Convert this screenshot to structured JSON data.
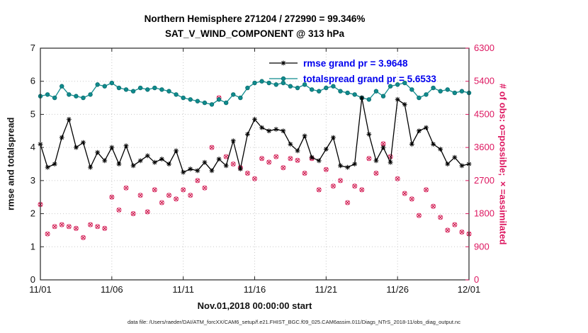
{
  "chart_data": {
    "type": "line",
    "title_line1": "Northern Hemisphere 271204 / 272990 = 99.346%",
    "title_line2": "SAT_V_WIND_COMPONENT @ 313 hPa",
    "xlabel": "Nov.01,2018 00:00:00 start",
    "ylabel_left": "rmse and totalspread",
    "ylabel_right": "# of obs: o=possible; ×=assimilated",
    "caption": "data file: /Users/raeder/DAI/ATM_forcXX/CAM6_setup/f.e21.FHIST_BGC.f09_025.CAM6assim.011/Diags_NTrS_2018-11/obs_diag_output.nc",
    "possible_count": 272990,
    "assimilated_count": 271204,
    "assimilated_pct": 99.346,
    "x_tick_labels": [
      "11/01",
      "11/06",
      "11/11",
      "11/16",
      "11/21",
      "11/26",
      "12/01"
    ],
    "x_tick_days": [
      0,
      5,
      10,
      15,
      20,
      25,
      30
    ],
    "x_range_days": [
      0,
      30
    ],
    "time_step_days": 0.5,
    "ylim_left": [
      0,
      7
    ],
    "yticks_left": [
      0,
      1,
      2,
      3,
      4,
      5,
      6,
      7
    ],
    "ylim_right": [
      0,
      6300
    ],
    "yticks_right": [
      0,
      900,
      1800,
      2700,
      3600,
      4500,
      5400,
      6300
    ],
    "grid": true,
    "legend": [
      {
        "label": "rmse grand pr = 3.9648",
        "series": "rmse"
      },
      {
        "label": "totalspread grand pr = 5.6533",
        "series": "totalspread"
      }
    ],
    "colors": {
      "rmse": "#000000",
      "totalspread": "#0f8b8d",
      "totalspread_edge": "#0a6b6d",
      "possible_obs": "#e0457b",
      "assimilated_obs": "#cc1144",
      "right_axis": "#dd1760",
      "legend_text": "#0000ee",
      "grid": "#c9c9c9",
      "box": "#262626"
    },
    "series": [
      {
        "name": "rmse",
        "axis": "left",
        "marker": "asterisk",
        "grand_mean": 3.9648,
        "values": [
          4.1,
          3.4,
          3.5,
          4.3,
          4.85,
          4.0,
          4.15,
          3.4,
          3.85,
          3.6,
          4.0,
          3.5,
          4.05,
          3.45,
          3.6,
          3.75,
          3.55,
          3.65,
          3.5,
          3.9,
          3.25,
          3.35,
          3.3,
          3.55,
          3.3,
          3.65,
          3.45,
          4.2,
          3.35,
          4.4,
          4.85,
          4.6,
          4.5,
          4.55,
          4.5,
          4.1,
          3.9,
          4.35,
          3.7,
          3.6,
          3.95,
          4.3,
          3.45,
          3.4,
          3.5,
          5.5,
          4.4,
          3.6,
          4.0,
          3.55,
          5.45,
          5.3,
          4.1,
          4.5,
          4.6,
          4.1,
          3.95,
          3.5,
          3.7,
          3.45,
          3.5
        ]
      },
      {
        "name": "totalspread",
        "axis": "left",
        "marker": "filled-circle",
        "grand_mean": 5.6533,
        "values": [
          5.55,
          5.6,
          5.5,
          5.85,
          5.6,
          5.55,
          5.5,
          5.6,
          5.9,
          5.85,
          5.95,
          5.8,
          5.75,
          5.7,
          5.8,
          5.75,
          5.8,
          5.75,
          5.7,
          5.6,
          5.5,
          5.45,
          5.4,
          5.35,
          5.3,
          5.45,
          5.35,
          5.6,
          5.5,
          5.8,
          5.95,
          6.0,
          5.95,
          5.9,
          5.95,
          5.85,
          5.8,
          5.9,
          5.75,
          5.7,
          5.8,
          5.85,
          5.7,
          5.65,
          5.6,
          5.5,
          5.45,
          5.7,
          5.55,
          5.85,
          5.9,
          5.95,
          5.75,
          5.5,
          5.6,
          5.8,
          5.7,
          5.75,
          5.65,
          5.7,
          5.65
        ]
      },
      {
        "name": "possible_obs",
        "axis": "right",
        "marker": "open-circle",
        "values": [
          2050,
          1250,
          1450,
          1500,
          1450,
          1400,
          1150,
          1500,
          1450,
          1400,
          2250,
          1900,
          2500,
          1800,
          2300,
          1850,
          2450,
          2100,
          2300,
          2200,
          2450,
          2300,
          2700,
          2500,
          3600,
          4950,
          3350,
          3150,
          3050,
          2900,
          2750,
          3300,
          3200,
          3350,
          3050,
          3300,
          3250,
          2900,
          3300,
          2450,
          3000,
          2550,
          2700,
          2100,
          2550,
          2450,
          3300,
          2900,
          3700,
          3350,
          2750,
          2350,
          2200,
          1750,
          2450,
          2000,
          1700,
          1350,
          1500,
          1300,
          1250
        ]
      },
      {
        "name": "assimilated_obs",
        "axis": "right",
        "marker": "x-cross",
        "values": [
          2050,
          1250,
          1450,
          1500,
          1450,
          1400,
          1150,
          1500,
          1450,
          1400,
          2250,
          1900,
          2500,
          1800,
          2300,
          1850,
          2450,
          2100,
          2300,
          2200,
          2450,
          2300,
          2700,
          2500,
          3600,
          4950,
          3350,
          3150,
          3050,
          2900,
          2750,
          3300,
          3200,
          3350,
          3050,
          3300,
          3250,
          2900,
          3300,
          2450,
          3000,
          2550,
          2700,
          2100,
          2550,
          2450,
          3300,
          2900,
          3700,
          3350,
          2750,
          2350,
          2200,
          1750,
          2450,
          2000,
          1700,
          1350,
          1500,
          1300,
          1250
        ]
      }
    ]
  }
}
